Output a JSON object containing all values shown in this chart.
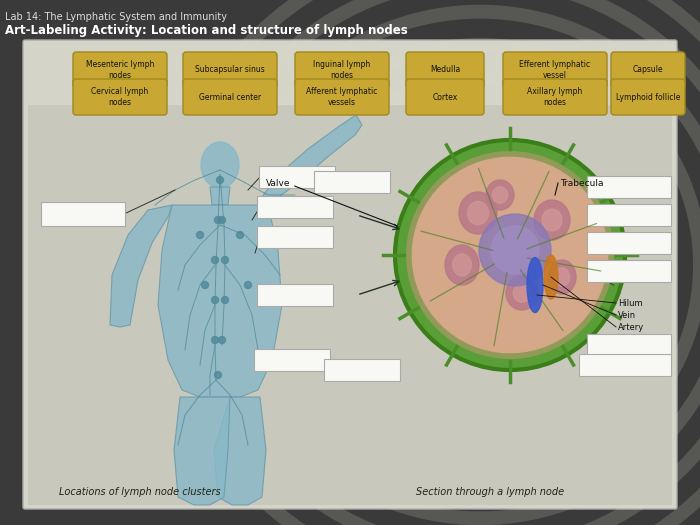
{
  "title1": "Lab 14: The Lymphatic System and Immunity",
  "title2": "Art-Labeling Activity: Location and structure of lymph nodes",
  "page_bg": "#3a3a3a",
  "content_bg": "#d8d8d0",
  "diagram_bg": "#c8c8bc",
  "label_box_color": "#c8a832",
  "label_box_edge": "#a08820",
  "label_text_color": "#111111",
  "label_boxes_row1": [
    "Mesenteric lymph\nnodes",
    "Subcapsular sinus",
    "Inguinal lymph\nnodes",
    "Medulla",
    "Efferent lymphatic\nvessel",
    "Capsule"
  ],
  "label_boxes_row2": [
    "Cervical lymph\nnodes",
    "Germinal center",
    "Afferent lymphatic\nvessels",
    "Cortex",
    "Axillary lymph\nnodes",
    "Lymphoid follicle"
  ],
  "blank_color": "#f8f8f4",
  "blank_edge": "#aaaaaa",
  "valve_label": "Valve",
  "trabecula_label": "Trabecula",
  "hilum_label": "Hilum",
  "vein_label": "Vein",
  "artery_label": "Artery",
  "caption_left": "Locations of lymph node clusters",
  "caption_right": "Section through a lymph node",
  "radial_bg_color": "#e0e0d0",
  "body_color": "#88b8c8",
  "body_edge": "#6898a8",
  "vessel_color": "#508898",
  "node_color": "#3a7888"
}
